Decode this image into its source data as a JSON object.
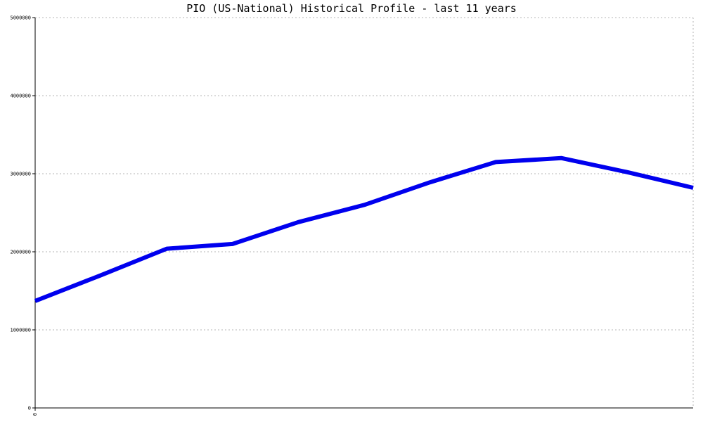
{
  "chart_data": {
    "type": "line",
    "title": "PIO (US-National) Historical Profile - last 11 years",
    "xlabel": "",
    "ylabel": "",
    "ylim": [
      0,
      5000000
    ],
    "yticks": [
      0,
      1000000,
      2000000,
      3000000,
      4000000,
      5000000
    ],
    "ytick_labels": [
      "0",
      "1000000",
      "2000000",
      "3000000",
      "4000000",
      "5000000"
    ],
    "xticks": [
      0
    ],
    "xtick_labels": [
      "0"
    ],
    "grid": true,
    "legend": "none",
    "series": [
      {
        "color": "#0000ee",
        "values": [
          1370000,
          1700000,
          2040000,
          2100000,
          2380000,
          2600000,
          2890000,
          3150000,
          3200000,
          3020000,
          2820000
        ]
      }
    ]
  }
}
